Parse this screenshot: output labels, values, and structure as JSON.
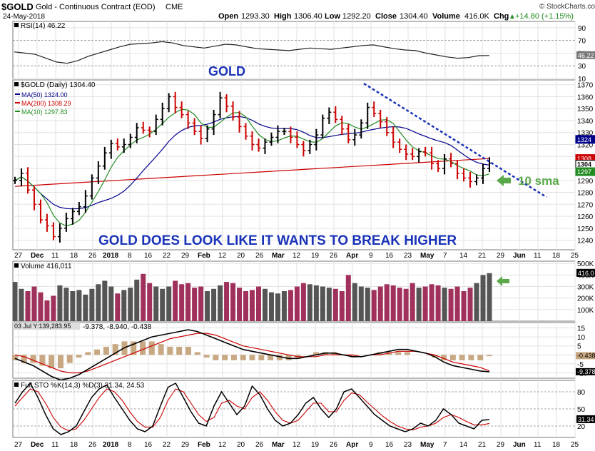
{
  "header": {
    "symbol": "$GOLD",
    "name": "Gold - Continuous Contract (EOD)",
    "exchange": "CME",
    "date": "24-May-2018",
    "open_label": "Open",
    "open": "1293.30",
    "high_label": "High",
    "high": "1306.40",
    "low_label": "Low",
    "low": "1292.20",
    "close_label": "Close",
    "close": "1304.40",
    "volume_label": "Volume",
    "volume": "416.0K",
    "chg_label": "Chg",
    "chg": "+14.80 (+1.15%)",
    "chg_arrow": "▲",
    "copyright": "© StockCharts.com"
  },
  "colors": {
    "up": "#000000",
    "down": "#cc0000",
    "ma50": "#00008b",
    "ma200": "#cc0000",
    "ma10": "#228b22",
    "annotation": "#1a33b8",
    "arrow": "#5aa84a",
    "vol_up": "#555555",
    "vol_down": "#a0315c",
    "macd_hist": "#c8a882"
  },
  "chart_data": [
    {
      "type": "line",
      "name": "rsi",
      "label": "RSI(14) 46.22",
      "ylim": [
        10,
        100
      ],
      "yticks": [
        "90",
        "70",
        "50",
        "30",
        "10"
      ],
      "last_value": "46.22",
      "values": [
        52,
        50,
        48,
        42,
        36,
        34,
        38,
        45,
        50,
        55,
        60,
        64,
        65,
        66,
        68,
        66,
        62,
        60,
        58,
        61,
        64,
        63,
        60,
        57,
        56,
        55,
        54,
        56,
        58,
        57,
        56,
        58,
        60,
        62,
        63,
        60,
        57,
        55,
        54,
        50,
        47,
        44,
        42,
        43,
        46,
        46.22
      ]
    },
    {
      "type": "ohlc",
      "name": "price",
      "label": "$GOLD (Daily) 1304.40",
      "ylim": [
        1232,
        1374
      ],
      "yticks": [
        "1370",
        "1360",
        "1350",
        "1340",
        "1330",
        "1320",
        "1310",
        "1300",
        "1290",
        "1280",
        "1270",
        "1260",
        "1250",
        "1240"
      ],
      "x_labels": [
        "27",
        "Dec",
        "11",
        "18",
        "26",
        "2018",
        "8",
        "16",
        "22",
        "29",
        "Feb",
        "12",
        "20",
        "26",
        "Mar",
        "12",
        "19",
        "26",
        "Apr",
        "9",
        "16",
        "23",
        "May",
        "7",
        "14",
        "21",
        "29",
        "Jun",
        "11",
        "18",
        "25"
      ],
      "axis_tags": [
        "1324",
        "1308",
        "1304",
        "1297"
      ],
      "closes": [
        1290,
        1296,
        1282,
        1270,
        1257,
        1252,
        1243,
        1250,
        1258,
        1264,
        1268,
        1277,
        1292,
        1302,
        1313,
        1321,
        1318,
        1320,
        1326,
        1334,
        1332,
        1331,
        1341,
        1350,
        1360,
        1351,
        1345,
        1338,
        1331,
        1325,
        1333,
        1345,
        1359,
        1352,
        1343,
        1335,
        1327,
        1320,
        1317,
        1322,
        1326,
        1331,
        1331,
        1326,
        1320,
        1315,
        1320,
        1328,
        1342,
        1347,
        1341,
        1333,
        1324,
        1328,
        1338,
        1351,
        1346,
        1339,
        1330,
        1322,
        1316,
        1312,
        1310,
        1314,
        1313,
        1304,
        1300,
        1308,
        1304,
        1296,
        1292,
        1289,
        1292,
        1300,
        1304.4
      ],
      "annotations": [
        "GOLD",
        "GOLD DOES LOOK LIKE IT WANTS TO BREAK HIGHER",
        "10 sma"
      ],
      "legend": [
        {
          "name": "MA(50) 1324.00",
          "color": "#00008b"
        },
        {
          "name": "MA(200) 1308.29",
          "color": "#cc0000"
        },
        {
          "name": "MA(10) 1297.83",
          "color": "#228b22"
        }
      ]
    },
    {
      "type": "bar",
      "name": "volume",
      "label": "Volume 416,011",
      "yticks": [
        "500K",
        "400K",
        "300K",
        "200K",
        "100K"
      ],
      "last_value": "416.0",
      "values": [
        340,
        280,
        260,
        300,
        250,
        180,
        220,
        310,
        290,
        260,
        270,
        230,
        280,
        320,
        350,
        300,
        240,
        270,
        290,
        360,
        410,
        330,
        300,
        280,
        300,
        350,
        320,
        330,
        290,
        300,
        260,
        280,
        310,
        340,
        330,
        290,
        260,
        270,
        300,
        280,
        250,
        240,
        260,
        270,
        300,
        330,
        320,
        310,
        300,
        290,
        280,
        260,
        400,
        330,
        300,
        290,
        270,
        300,
        320,
        310,
        290,
        280,
        330,
        290,
        300,
        320,
        310,
        290,
        280,
        300,
        260,
        290,
        330,
        400,
        416
      ]
    },
    {
      "type": "line",
      "name": "macd",
      "label": "03 Jul Y:139,283.95",
      "values_label": "-9.378, -8.940, -0.438",
      "yticks": [
        "15",
        "10",
        "5",
        "0",
        "-5",
        "-10"
      ],
      "last_values": [
        "-0.438",
        "-9.378"
      ],
      "macd": [
        -2,
        -4,
        -6,
        -9,
        -12,
        -14,
        -13,
        -11,
        -8,
        -5,
        -2,
        1,
        4,
        6,
        8,
        10,
        11,
        12,
        13,
        14,
        13,
        11,
        9,
        7,
        5,
        3,
        2,
        1,
        0,
        -1,
        -2,
        -2,
        -1,
        0,
        1,
        1,
        0,
        -1,
        -1,
        0,
        1,
        2,
        3,
        3,
        2,
        1,
        -1,
        -4,
        -6,
        -7,
        -8,
        -9,
        -9.4
      ],
      "signal": [
        0,
        -1,
        -3,
        -5,
        -7,
        -9,
        -10,
        -10,
        -9,
        -7,
        -5,
        -3,
        -1,
        1,
        3,
        5,
        7,
        9,
        10,
        11,
        12,
        12,
        11,
        9,
        7,
        5,
        4,
        3,
        2,
        1,
        0,
        -1,
        -1,
        -1,
        0,
        0,
        0,
        0,
        -1,
        0,
        0,
        1,
        2,
        2,
        2,
        1,
        0,
        -2,
        -4,
        -5,
        -6,
        -7,
        -8.9
      ]
    },
    {
      "type": "line",
      "name": "stochastic",
      "label": "Full STO %K(14,3) %D(3) 31.34, 24.53",
      "ylim": [
        0,
        100
      ],
      "yticks": [
        "80",
        "50",
        "20"
      ],
      "last_value": "31.34",
      "k": [
        60,
        80,
        95,
        70,
        40,
        15,
        5,
        10,
        20,
        45,
        70,
        85,
        92,
        70,
        50,
        30,
        15,
        10,
        20,
        55,
        88,
        95,
        70,
        45,
        25,
        20,
        55,
        80,
        60,
        40,
        55,
        90,
        75,
        50,
        30,
        20,
        25,
        40,
        60,
        70,
        50,
        35,
        50,
        80,
        85,
        70,
        55,
        40,
        30,
        20,
        15,
        10,
        15,
        25,
        20,
        30,
        50,
        40,
        25,
        20,
        15,
        30,
        31.34
      ],
      "d": [
        55,
        70,
        85,
        80,
        60,
        35,
        18,
        12,
        15,
        30,
        50,
        70,
        85,
        80,
        65,
        45,
        28,
        18,
        18,
        35,
        65,
        85,
        80,
        60,
        40,
        28,
        35,
        60,
        65,
        55,
        50,
        70,
        80,
        65,
        45,
        30,
        25,
        30,
        45,
        60,
        60,
        45,
        45,
        65,
        78,
        75,
        62,
        50,
        38,
        28,
        20,
        15,
        13,
        18,
        20,
        25,
        35,
        40,
        35,
        28,
        22,
        22,
        24.53
      ]
    }
  ]
}
